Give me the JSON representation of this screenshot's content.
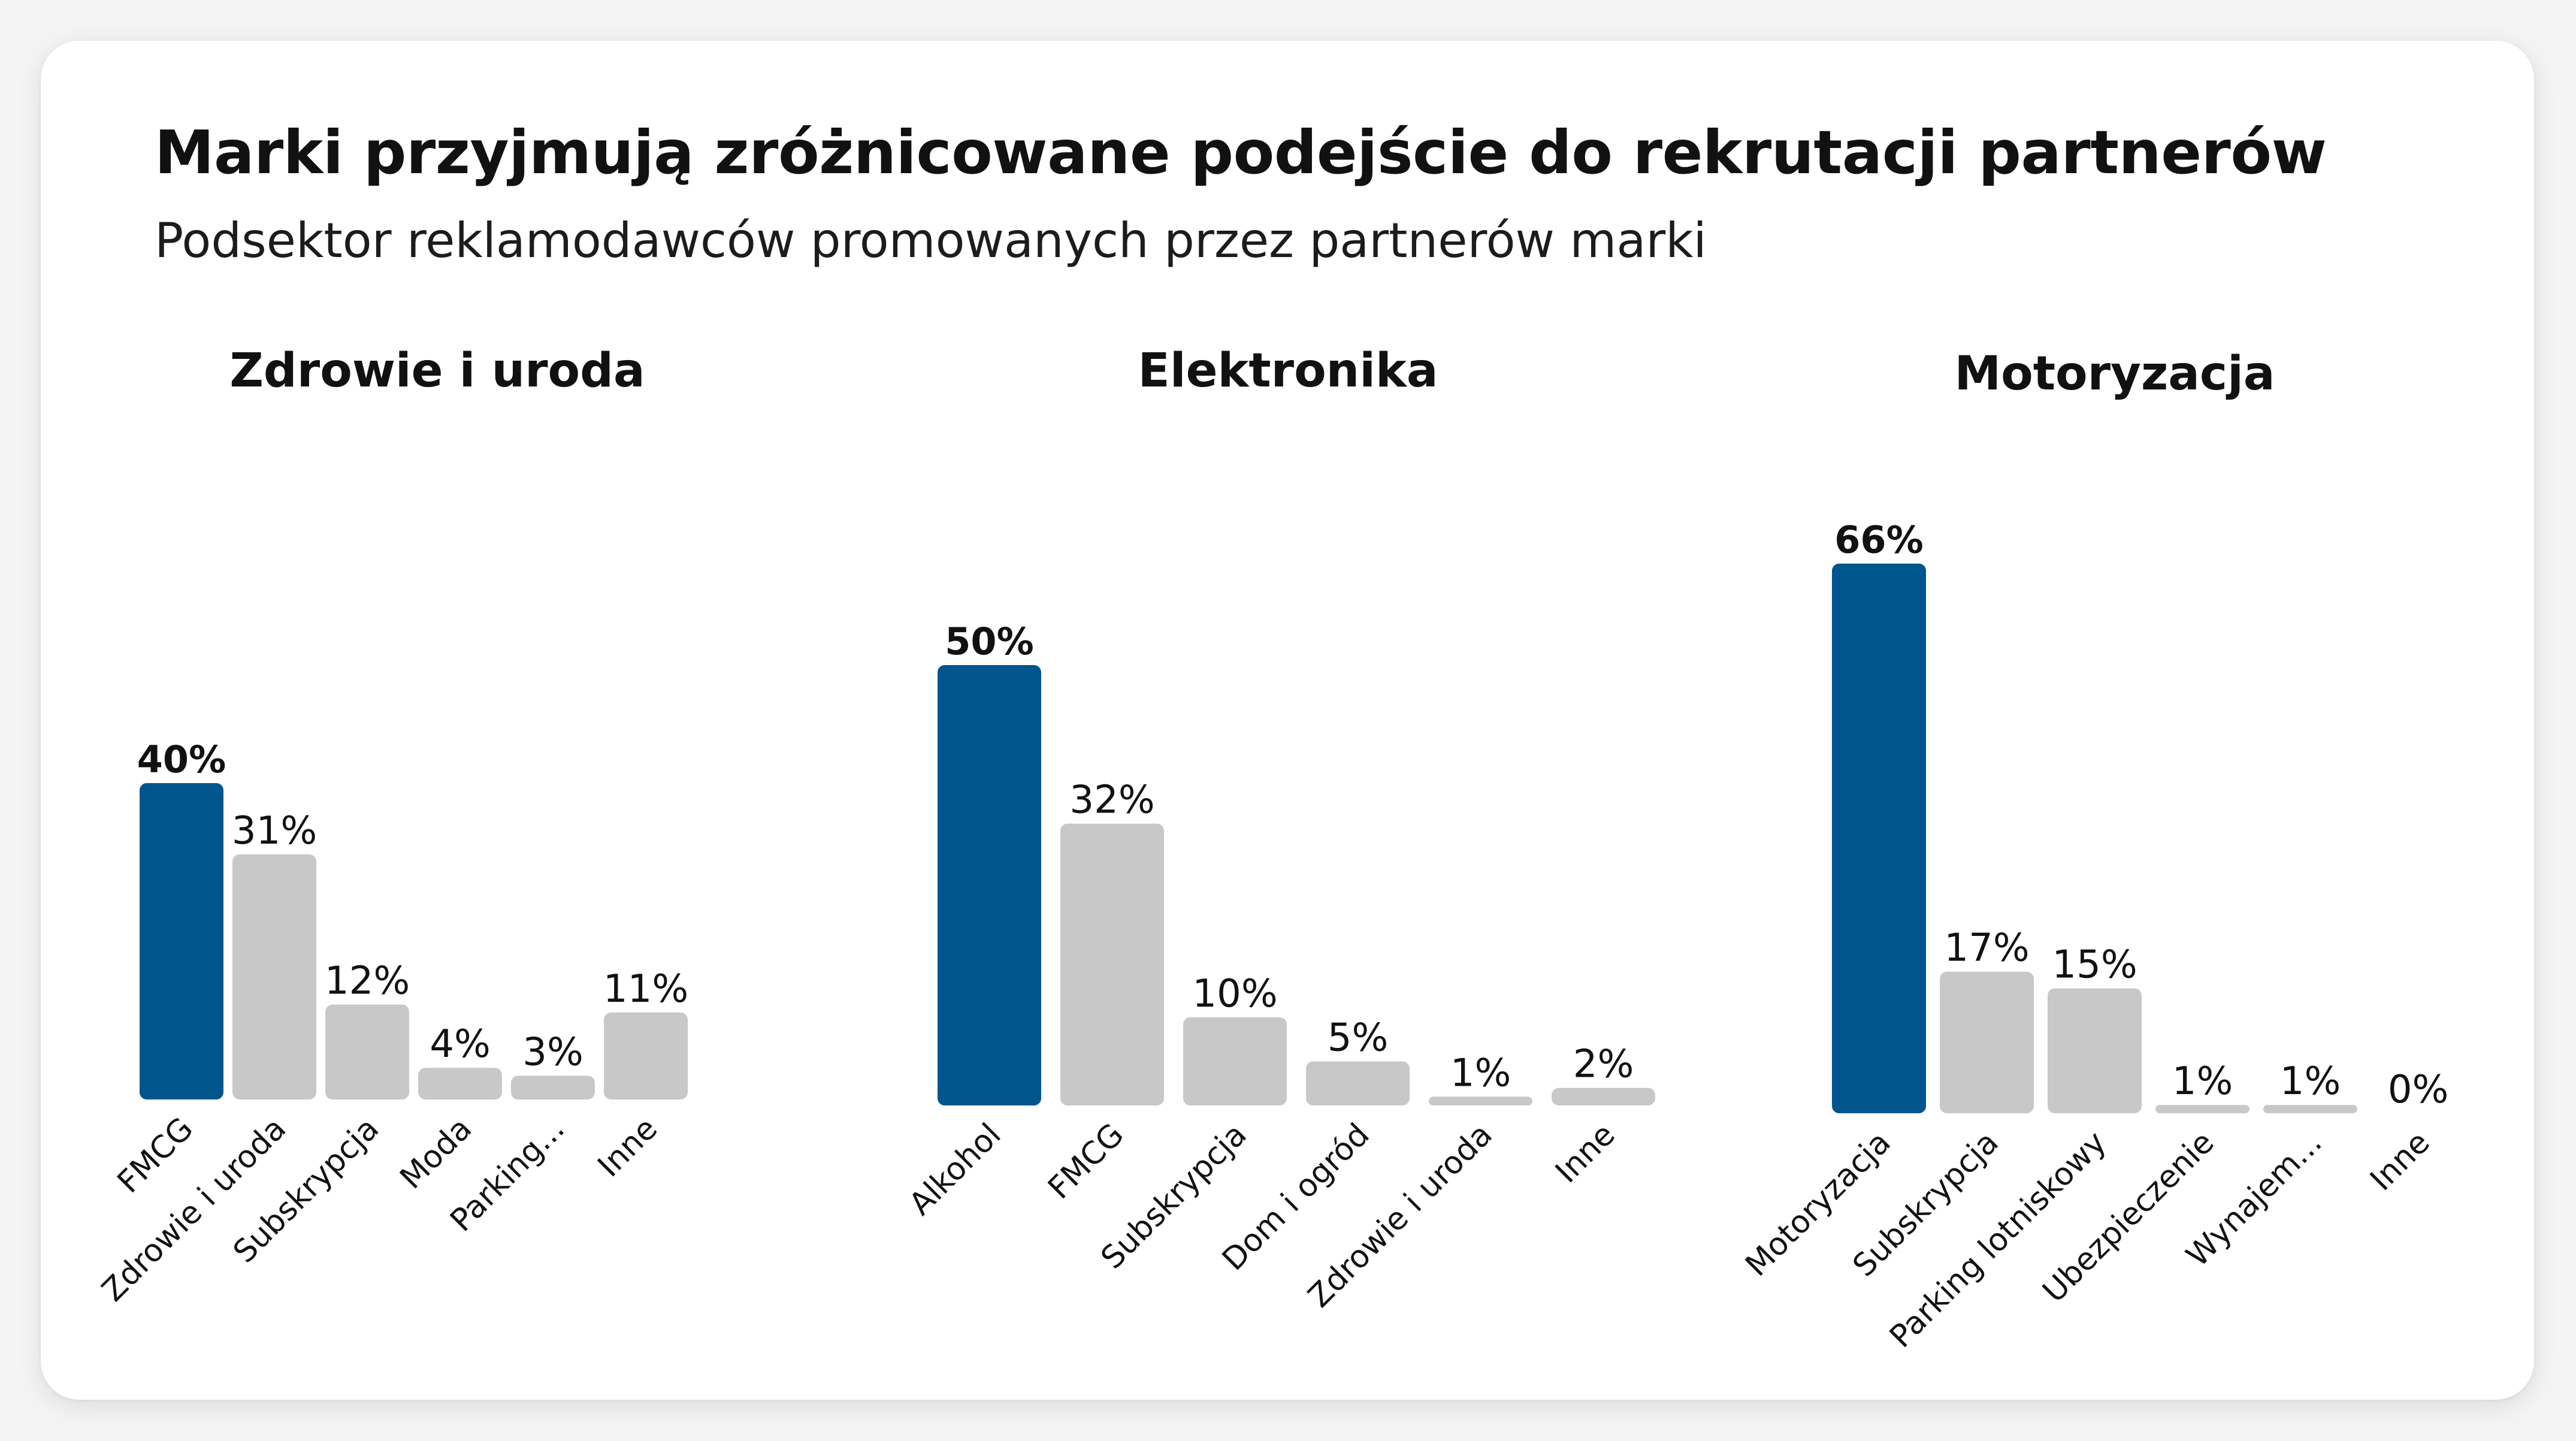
{
  "title": "Marki przyjmują zróżnicowane podejście do rekrutacji partnerów",
  "subtitle": "Podsektor reklamodawców promowanych przez partnerów marki",
  "colors": {
    "highlight": "#00558c",
    "bar": "#c8c8c8",
    "text": "#111111"
  },
  "chart_data": [
    {
      "type": "bar",
      "title": "Zdrowie i uroda",
      "categories": [
        "FMCG",
        "Zdrowie i uroda",
        "Subskrypcja",
        "Moda",
        "Parking...",
        "Inne"
      ],
      "values": [
        40,
        31,
        12,
        4,
        3,
        11
      ],
      "labels": [
        "40%",
        "31%",
        "12%",
        "4%",
        "3%",
        "11%"
      ],
      "unit": "%",
      "highlight_index": 0,
      "grid": false,
      "legend": "none"
    },
    {
      "type": "bar",
      "title": "Elektronika",
      "categories": [
        "Alkohol",
        "FMCG",
        "Subskrypcja",
        "Dom i ogród",
        "Zdrowie i uroda",
        "Inne"
      ],
      "values": [
        50,
        32,
        10,
        5,
        1,
        2
      ],
      "labels": [
        "50%",
        "32%",
        "10%",
        "5%",
        "1%",
        "2%"
      ],
      "unit": "%",
      "highlight_index": 0,
      "grid": false,
      "legend": "none"
    },
    {
      "type": "bar",
      "title": "Motoryzacja",
      "categories": [
        "Motoryzacja",
        "Subskrypcja",
        "Parking lotniskowy",
        "Ubezpieczenie",
        "Wynajem...",
        "Inne"
      ],
      "values": [
        66,
        17,
        15,
        1,
        1,
        0
      ],
      "labels": [
        "66%",
        "17%",
        "15%",
        "1%",
        "1%",
        "0%"
      ],
      "unit": "%",
      "highlight_index": 0,
      "grid": false,
      "legend": "none"
    }
  ]
}
